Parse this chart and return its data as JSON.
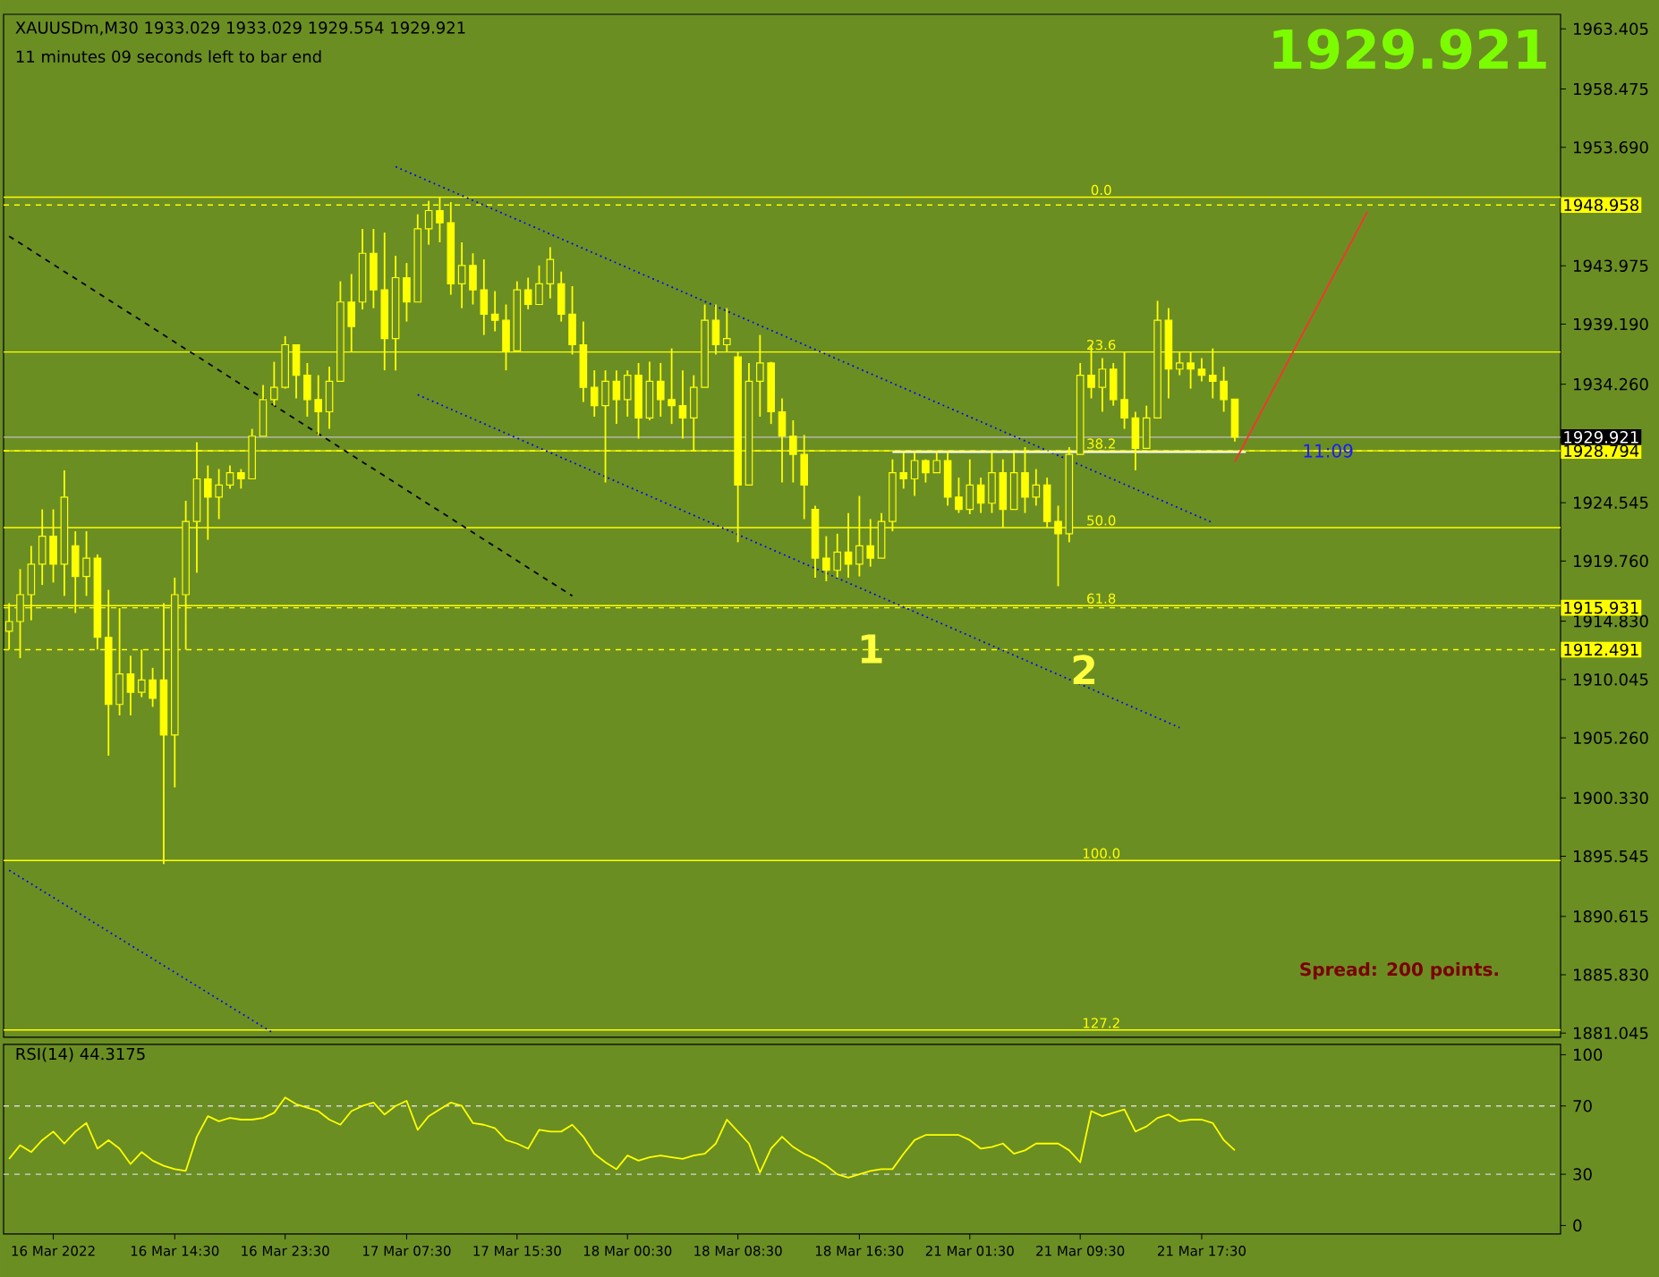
{
  "chart_data": [
    {
      "type": "candlestick",
      "title": "XAUUSDm,M30 1933.029 1933.029 1929.554 1929.921",
      "subtitle": "11 minutes 09 seconds left to bar end",
      "color": "#ffff00",
      "categories": [
        null,
        null,
        null,
        null,
        null,
        null,
        null,
        null,
        null,
        null,
        null,
        null,
        null,
        null,
        null,
        null,
        null,
        null,
        null,
        null,
        null,
        null,
        null,
        null,
        null,
        null,
        null,
        null,
        null,
        null,
        null,
        null,
        null,
        null,
        null,
        null,
        null,
        null,
        null,
        null,
        null,
        null,
        null,
        null,
        null,
        null,
        null,
        null,
        null,
        null,
        null,
        null,
        null,
        null,
        null,
        null,
        null,
        null,
        null,
        null,
        null,
        null,
        null,
        null,
        null,
        null,
        null,
        null,
        null,
        null,
        null,
        null,
        null,
        null,
        null,
        null,
        null,
        null,
        null,
        null,
        null,
        null,
        null,
        null,
        null,
        null,
        null,
        null,
        null,
        null,
        null,
        null,
        null,
        null,
        null,
        null,
        null,
        null,
        null,
        null,
        null,
        null,
        null,
        null,
        null,
        null,
        null,
        null,
        null,
        null,
        null,
        null,
        null,
        null,
        null,
        null,
        null,
        null,
        null,
        null,
        null,
        null,
        null,
        null,
        null,
        null,
        null,
        null,
        null,
        null,
        null,
        null,
        null,
        null,
        null,
        null,
        null,
        null,
        null,
        null,
        null
      ],
      "ohlc": [
        [
          1914.0,
          1916.3,
          1912.5,
          1914.8
        ],
        [
          1914.8,
          1919.1,
          1911.8,
          1917.0
        ],
        [
          1917.0,
          1921.0,
          1914.9,
          1919.5
        ],
        [
          1919.5,
          1924.0,
          1917.8,
          1921.8
        ],
        [
          1921.8,
          1924.0,
          1918.0,
          1919.5
        ],
        [
          1919.5,
          1927.2,
          1916.9,
          1925.0
        ],
        [
          1921.0,
          1922.2,
          1915.5,
          1918.5
        ],
        [
          1918.5,
          1922.2,
          1916.9,
          1920.0
        ],
        [
          1920.0,
          1920.3,
          1912.5,
          1913.5
        ],
        [
          1913.5,
          1917.4,
          1903.8,
          1908.0
        ],
        [
          1908.0,
          1915.9,
          1907.1,
          1910.5
        ],
        [
          1910.5,
          1912.0,
          1907.1,
          1909.0
        ],
        [
          1909.0,
          1912.5,
          1908.6,
          1910.0
        ],
        [
          1910.0,
          1911.0,
          1907.8,
          1908.5
        ],
        [
          1910.0,
          1916.3,
          1894.9,
          1905.5
        ],
        [
          1905.5,
          1918.4,
          1901.2,
          1917.0
        ],
        [
          1917.0,
          1924.7,
          1912.5,
          1923.0
        ],
        [
          1923.0,
          1929.5,
          1918.8,
          1926.5
        ],
        [
          1926.5,
          1927.6,
          1921.5,
          1925.0
        ],
        [
          1925.0,
          1927.3,
          1923.2,
          1926.0
        ],
        [
          1926.0,
          1927.6,
          1925.7,
          1927.0
        ],
        [
          1927.0,
          1927.3,
          1925.7,
          1926.5
        ],
        [
          1926.5,
          1930.6,
          1926.5,
          1930.0
        ],
        [
          1930.0,
          1934.2,
          1930.0,
          1933.0
        ],
        [
          1933.0,
          1936.1,
          1932.5,
          1934.0
        ],
        [
          1934.0,
          1938.2,
          1933.9,
          1937.5
        ],
        [
          1937.5,
          1937.5,
          1933.1,
          1935.0
        ],
        [
          1935.0,
          1936.0,
          1931.6,
          1933.0
        ],
        [
          1933.0,
          1935.0,
          1930.1,
          1932.0
        ],
        [
          1932.0,
          1935.7,
          1930.6,
          1934.5
        ],
        [
          1934.5,
          1942.7,
          1934.5,
          1941.0
        ],
        [
          1941.0,
          1943.3,
          1936.9,
          1939.0
        ],
        [
          1941.0,
          1947.0,
          1940.4,
          1945.0
        ],
        [
          1945.0,
          1947.0,
          1940.5,
          1942.0
        ],
        [
          1942.0,
          1946.7,
          1935.4,
          1938.0
        ],
        [
          1938.0,
          1944.8,
          1935.4,
          1943.0
        ],
        [
          1943.0,
          1944.2,
          1939.4,
          1941.0
        ],
        [
          1941.0,
          1948.2,
          1941.0,
          1947.0
        ],
        [
          1947.0,
          1949.3,
          1945.7,
          1948.5
        ],
        [
          1948.5,
          1949.6,
          1945.9,
          1947.5
        ],
        [
          1947.5,
          1949.2,
          1941.6,
          1942.5
        ],
        [
          1942.5,
          1945.9,
          1940.5,
          1944.0
        ],
        [
          1944.0,
          1945.0,
          1940.8,
          1942.0
        ],
        [
          1942.0,
          1944.5,
          1938.3,
          1940.0
        ],
        [
          1940.0,
          1941.9,
          1938.6,
          1939.5
        ],
        [
          1939.5,
          1940.8,
          1935.4,
          1937.0
        ],
        [
          1937.0,
          1942.7,
          1936.9,
          1942.0
        ],
        [
          1942.0,
          1943.0,
          1940.4,
          1940.8
        ],
        [
          1940.8,
          1944.0,
          1940.8,
          1942.5
        ],
        [
          1942.5,
          1945.5,
          1941.3,
          1944.5
        ],
        [
          1942.5,
          1943.5,
          1939.4,
          1940.0
        ],
        [
          1940.0,
          1942.3,
          1936.7,
          1937.5
        ],
        [
          1937.5,
          1939.4,
          1932.8,
          1934.0
        ],
        [
          1934.0,
          1935.4,
          1931.6,
          1932.5
        ],
        [
          1932.5,
          1935.4,
          1926.2,
          1934.5
        ],
        [
          1934.5,
          1935.4,
          1931.0,
          1933.0
        ],
        [
          1933.0,
          1935.4,
          1931.6,
          1935.0
        ],
        [
          1935.0,
          1936.0,
          1929.8,
          1931.5
        ],
        [
          1931.5,
          1936.1,
          1931.3,
          1934.5
        ],
        [
          1934.5,
          1936.0,
          1931.6,
          1933.0
        ],
        [
          1933.0,
          1937.2,
          1931.0,
          1932.5
        ],
        [
          1932.5,
          1935.4,
          1929.8,
          1931.5
        ],
        [
          1931.5,
          1935.0,
          1928.8,
          1934.0
        ],
        [
          1934.0,
          1940.8,
          1934.0,
          1939.5
        ],
        [
          1939.5,
          1940.8,
          1936.7,
          1937.5
        ],
        [
          1937.5,
          1940.5,
          1936.9,
          1938.0
        ],
        [
          1936.5,
          1936.9,
          1921.3,
          1926.0
        ],
        [
          1926.0,
          1936.0,
          1926.0,
          1934.5
        ],
        [
          1934.5,
          1938.3,
          1931.6,
          1936.0
        ],
        [
          1936.0,
          1936.1,
          1931.0,
          1932.0
        ],
        [
          1932.0,
          1933.1,
          1926.2,
          1930.0
        ],
        [
          1930.0,
          1931.3,
          1926.2,
          1928.5
        ],
        [
          1928.5,
          1930.1,
          1923.2,
          1926.0
        ],
        [
          1924.0,
          1924.3,
          1918.4,
          1920.0
        ],
        [
          1920.0,
          1921.8,
          1918.1,
          1919.0
        ],
        [
          1919.0,
          1922.0,
          1918.4,
          1920.5
        ],
        [
          1920.5,
          1923.7,
          1918.4,
          1919.5
        ],
        [
          1919.5,
          1925.1,
          1918.5,
          1921.0
        ],
        [
          1921.0,
          1923.2,
          1919.3,
          1920.0
        ],
        [
          1920.0,
          1923.7,
          1920.0,
          1923.0
        ],
        [
          1923.0,
          1928.1,
          1922.2,
          1927.0
        ],
        [
          1927.0,
          1928.7,
          1925.7,
          1926.5
        ],
        [
          1926.5,
          1928.7,
          1925.1,
          1928.0
        ],
        [
          1928.0,
          1928.1,
          1926.2,
          1927.0
        ],
        [
          1927.0,
          1928.7,
          1927.0,
          1928.0
        ],
        [
          1928.0,
          1928.7,
          1924.3,
          1925.0
        ],
        [
          1925.0,
          1926.6,
          1923.7,
          1924.0
        ],
        [
          1924.0,
          1928.1,
          1923.6,
          1926.0
        ],
        [
          1926.0,
          1926.6,
          1923.7,
          1924.5
        ],
        [
          1924.5,
          1928.7,
          1923.7,
          1927.0
        ],
        [
          1927.0,
          1928.1,
          1922.5,
          1924.0
        ],
        [
          1924.0,
          1928.7,
          1924.0,
          1927.0
        ],
        [
          1927.0,
          1929.1,
          1923.7,
          1925.0
        ],
        [
          1925.0,
          1927.3,
          1924.3,
          1926.0
        ],
        [
          1926.0,
          1926.6,
          1922.5,
          1923.0
        ],
        [
          1923.0,
          1924.3,
          1917.7,
          1922.0
        ],
        [
          1922.0,
          1929.1,
          1921.3,
          1928.5
        ],
        [
          1928.5,
          1936.0,
          1928.5,
          1935.0
        ],
        [
          1935.0,
          1937.5,
          1933.1,
          1934.0
        ],
        [
          1934.0,
          1936.4,
          1932.0,
          1935.5
        ],
        [
          1935.5,
          1936.0,
          1932.5,
          1933.0
        ],
        [
          1933.0,
          1936.9,
          1930.6,
          1931.5
        ],
        [
          1931.5,
          1932.0,
          1927.2,
          1929.0
        ],
        [
          1929.0,
          1932.5,
          1929.0,
          1931.5
        ],
        [
          1931.5,
          1941.1,
          1931.5,
          1939.5
        ],
        [
          1939.5,
          1940.5,
          1933.1,
          1935.5
        ],
        [
          1935.5,
          1936.9,
          1935.0,
          1936.0
        ],
        [
          1936.0,
          1936.9,
          1933.9,
          1935.5
        ],
        [
          1935.5,
          1936.4,
          1934.5,
          1935.0
        ],
        [
          1935.0,
          1937.2,
          1933.1,
          1934.5
        ],
        [
          1934.5,
          1935.7,
          1932.0,
          1933.0
        ],
        [
          1933.029,
          1933.029,
          1929.554,
          1929.921
        ],
        null,
        null,
        null,
        null,
        null,
        null,
        null,
        null,
        null,
        null,
        null,
        null,
        null,
        null,
        null,
        null,
        null,
        null,
        null,
        null,
        null,
        null,
        null,
        null,
        null,
        null,
        null,
        null,
        null
      ],
      "series": [
        {
          "type": "line",
          "color": "#0000ff",
          "line_style": "dotted",
          "values": [
            null,
            null,
            null,
            null,
            null,
            null,
            null,
            null,
            null,
            null,
            null,
            null,
            null,
            null,
            null,
            null,
            null,
            null,
            null,
            null,
            null,
            null,
            null,
            null,
            null,
            null,
            null,
            null,
            null,
            null,
            null,
            null,
            null,
            null,
            null,
            1952.1,
            null,
            null,
            null,
            null,
            null,
            null,
            null,
            null,
            null,
            null,
            null,
            null,
            null,
            null,
            null,
            null,
            null,
            null,
            null,
            null,
            null,
            null,
            null,
            null,
            null,
            null,
            null,
            null,
            null,
            null,
            null,
            null,
            null,
            null,
            null,
            null,
            null,
            null,
            null,
            null,
            null,
            null,
            null,
            null,
            null,
            null,
            null,
            null,
            null,
            null,
            null,
            null,
            null,
            null,
            null,
            null,
            null,
            null,
            null,
            null,
            null,
            null,
            null,
            null,
            null,
            null,
            null,
            null,
            null,
            null,
            null,
            null,
            null,
            1922.9,
            null,
            null,
            null,
            null,
            null,
            null,
            null,
            null,
            null,
            null,
            null,
            null,
            null,
            null,
            null,
            null,
            null,
            null,
            null,
            null,
            null,
            null,
            null,
            null,
            null,
            null,
            null,
            null,
            null,
            null,
            null
          ]
        },
        {
          "type": "line",
          "color": "#000000",
          "line_style": "dashed",
          "values": [
            1946.4,
            null,
            null,
            null,
            null,
            null,
            null,
            null,
            null,
            null,
            null,
            null,
            null,
            null,
            null,
            null,
            null,
            null,
            null,
            null,
            null,
            null,
            null,
            null,
            null,
            null,
            null,
            null,
            null,
            null,
            null,
            null,
            null,
            null,
            null,
            null,
            null,
            null,
            null,
            null,
            null,
            null,
            null,
            null,
            null,
            null,
            null,
            null,
            null,
            null,
            null,
            1916.9,
            null,
            null,
            null,
            null,
            null,
            null,
            null,
            null,
            null,
            null,
            null,
            null,
            null,
            null,
            null,
            null,
            null,
            null,
            null,
            null,
            null,
            null,
            null,
            null,
            null,
            null,
            null,
            null,
            null,
            null,
            null,
            null,
            null,
            null,
            null,
            null,
            null,
            null,
            null,
            null,
            null,
            null,
            null,
            null,
            null,
            null,
            null,
            null,
            null,
            null,
            null,
            null,
            null,
            null,
            null,
            null,
            null,
            null,
            null,
            null,
            null,
            null,
            null,
            null,
            null,
            null,
            null,
            null,
            null,
            null,
            null,
            null,
            null,
            null,
            null,
            null,
            null,
            null,
            null,
            null,
            null,
            null,
            null,
            null,
            null,
            null,
            null,
            null,
            null
          ]
        },
        {
          "type": "line",
          "color": "#0000ff",
          "line_style": "dotted",
          "values": [
            null,
            null,
            null,
            null,
            null,
            null,
            null,
            null,
            null,
            null,
            null,
            null,
            null,
            null,
            null,
            null,
            null,
            null,
            null,
            null,
            null,
            null,
            null,
            null,
            null,
            null,
            null,
            null,
            null,
            null,
            null,
            null,
            null,
            null,
            null,
            null,
            null,
            1933.4,
            null,
            null,
            null,
            null,
            null,
            null,
            null,
            null,
            null,
            null,
            null,
            null,
            null,
            null,
            null,
            null,
            null,
            null,
            null,
            null,
            null,
            null,
            null,
            null,
            null,
            null,
            null,
            null,
            null,
            null,
            null,
            null,
            null,
            null,
            null,
            null,
            null,
            null,
            null,
            null,
            null,
            null,
            null,
            null,
            null,
            null,
            null,
            null,
            null,
            null,
            null,
            null,
            null,
            null,
            null,
            null,
            null,
            null,
            null,
            null,
            null,
            null,
            null,
            null,
            null,
            null,
            null,
            null,
            1906.1,
            null,
            null,
            null,
            null,
            null,
            null,
            null,
            null,
            null,
            null,
            null,
            null,
            null,
            null,
            null,
            null,
            null,
            null,
            null,
            null,
            null,
            null,
            null,
            null,
            null,
            null,
            null,
            null,
            null,
            null,
            null,
            null,
            null,
            null
          ]
        },
        {
          "type": "line",
          "color": "#0000ff",
          "line_style": "dotted",
          "values": [
            1894.4,
            null,
            null,
            null,
            null,
            null,
            null,
            null,
            null,
            null,
            null,
            null,
            null,
            null,
            null,
            null,
            null,
            null,
            null,
            null,
            null,
            null,
            null,
            null,
            1881.0,
            null,
            null,
            null,
            null,
            null,
            null,
            null,
            null,
            null,
            null,
            null,
            null,
            null,
            null,
            null,
            null,
            null,
            null,
            null,
            null,
            null,
            null,
            null,
            null,
            null,
            null,
            null,
            null,
            null,
            null,
            null,
            null,
            null,
            null,
            null,
            null,
            null,
            null,
            null,
            null,
            null,
            null,
            null,
            null,
            null,
            null,
            null,
            null,
            null,
            null,
            null,
            null,
            null,
            null,
            null,
            null,
            null,
            null,
            null,
            null,
            null,
            null,
            null,
            null,
            null,
            null,
            null,
            null,
            null,
            null,
            null,
            null,
            null,
            null,
            null,
            null,
            null,
            null,
            null,
            null,
            null,
            null,
            null,
            null,
            null,
            null,
            null,
            null,
            null,
            null,
            null,
            null,
            null,
            null,
            null,
            null,
            null,
            null,
            null,
            null,
            null,
            null,
            null,
            null,
            null,
            null,
            null,
            null,
            null,
            null,
            null,
            null,
            null,
            null,
            null,
            null
          ]
        },
        {
          "type": "line",
          "color": "#ffffff",
          "line_style": "solid",
          "values": [
            null,
            null,
            null,
            null,
            null,
            null,
            null,
            null,
            null,
            null,
            null,
            null,
            null,
            null,
            null,
            null,
            null,
            null,
            null,
            null,
            null,
            null,
            null,
            null,
            null,
            null,
            null,
            null,
            null,
            null,
            null,
            null,
            null,
            null,
            null,
            null,
            null,
            null,
            null,
            null,
            null,
            null,
            null,
            null,
            null,
            null,
            null,
            null,
            null,
            null,
            null,
            null,
            null,
            null,
            null,
            null,
            null,
            null,
            null,
            null,
            null,
            null,
            null,
            null,
            null,
            null,
            null,
            null,
            null,
            null,
            null,
            null,
            null,
            null,
            null,
            null,
            null,
            null,
            null,
            null,
            1928.7,
            null,
            null,
            null,
            null,
            null,
            null,
            null,
            null,
            null,
            null,
            null,
            null,
            null,
            null,
            null,
            null,
            null,
            null,
            null,
            null,
            null,
            null,
            null,
            null,
            null,
            null,
            null,
            null,
            null,
            null,
            null,
            1928.7,
            null,
            null,
            null,
            null,
            null,
            null,
            null,
            null,
            null,
            null,
            null,
            null,
            null,
            null,
            null,
            null,
            null,
            null,
            null,
            null,
            null,
            null,
            null,
            null,
            null,
            null,
            null,
            null
          ]
        },
        {
          "type": "line",
          "color": "#ff3030",
          "line_style": "solid",
          "values": [
            null,
            null,
            null,
            null,
            null,
            null,
            null,
            null,
            null,
            null,
            null,
            null,
            null,
            null,
            null,
            null,
            null,
            null,
            null,
            null,
            null,
            null,
            null,
            null,
            null,
            null,
            null,
            null,
            null,
            null,
            null,
            null,
            null,
            null,
            null,
            null,
            null,
            null,
            null,
            null,
            null,
            null,
            null,
            null,
            null,
            null,
            null,
            null,
            null,
            null,
            null,
            null,
            null,
            null,
            null,
            null,
            null,
            null,
            null,
            null,
            null,
            null,
            null,
            null,
            null,
            null,
            null,
            null,
            null,
            null,
            null,
            null,
            null,
            null,
            null,
            null,
            null,
            null,
            null,
            null,
            null,
            null,
            null,
            null,
            null,
            null,
            null,
            null,
            null,
            null,
            null,
            null,
            null,
            null,
            null,
            null,
            null,
            null,
            null,
            null,
            null,
            null,
            null,
            null,
            null,
            null,
            null,
            null,
            null,
            null,
            null,
            1927.9,
            null,
            null,
            null,
            null,
            null,
            null,
            null,
            null,
            null,
            null,
            null,
            1948.4,
            null,
            null,
            null,
            null,
            null,
            null,
            null,
            null,
            null,
            null,
            null,
            null,
            null,
            null,
            null,
            null,
            null
          ]
        }
      ],
      "ylim": [
        1880.7,
        1964.6
      ],
      "yticks": [
        1963.405,
        1958.475,
        {
          "value": 1953.69,
          "label": "1953.690"
        },
        1943.975,
        {
          "value": 1939.19,
          "label": "1939.190"
        },
        {
          "value": 1934.26,
          "label": "1934.260"
        },
        1924.545,
        {
          "value": 1919.76,
          "label": "1919.760"
        },
        {
          "value": 1914.83,
          "label": "1914.830"
        },
        1910.045,
        {
          "value": 1905.26,
          "label": "1905.260"
        },
        {
          "value": 1900.33,
          "label": "1900.330"
        },
        1895.545,
        1890.615,
        {
          "value": 1885.83,
          "label": "1885.830"
        },
        1881.045
      ],
      "tick_labels": "y",
      "ref_lines": [
        {
          "axis": "y",
          "value": 1948.958,
          "label": "1948.958",
          "color": "#ffff00",
          "line_style": "dashed"
        },
        {
          "axis": "y",
          "value": 1928.794,
          "label": "1928.794",
          "color": "#ffff00",
          "line_style": "dashed"
        },
        {
          "axis": "y",
          "value": 1915.931,
          "label": "1915.931",
          "color": "#ffff00",
          "line_style": "dashed"
        },
        {
          "axis": "y",
          "value": 1912.491,
          "label": "1912.491",
          "color": "#ffff00",
          "line_style": "dashed"
        },
        {
          "axis": "y",
          "value": 1929.921,
          "label": "1929.921",
          "color": "#c0c0c0",
          "line_style": "solid"
        },
        {
          "axis": "y",
          "value": 1949.6,
          "color": "#ffff00"
        },
        {
          "axis": "y",
          "value": 1936.9,
          "color": "#ffff00"
        },
        {
          "axis": "y",
          "value": 1928.8,
          "color": "#ffff00"
        },
        {
          "axis": "y",
          "value": 1922.5,
          "color": "#ffff00"
        },
        {
          "axis": "y",
          "value": 1916.1,
          "color": "#ffff00"
        },
        {
          "axis": "y",
          "value": 1895.2,
          "color": "#ffff00"
        },
        {
          "axis": "y",
          "value": 1881.3,
          "color": "#ffff00"
        }
      ],
      "annotations": [
        "1929.921",
        "Spread: 200 points.",
        "1",
        "2",
        {
          "text": "11:09",
          "y": 1928.8
        },
        {
          "text": "0.0",
          "y": 1949.6
        },
        {
          "text": "23.6",
          "y": 1936.9
        },
        {
          "text": "38.2",
          "y": 1928.8
        },
        {
          "text": "50.0",
          "y": 1922.5
        },
        {
          "text": "61.8",
          "y": 1916.1
        },
        {
          "text": "100.0",
          "y": 1895.2
        },
        {
          "text": "127.2",
          "y": 1881.3
        }
      ]
    },
    {
      "type": "line",
      "title": "RSI(14) 44.3175",
      "color": "#ffff00",
      "categories": [
        null,
        null,
        null,
        null,
        "16 Mar 2022",
        null,
        null,
        null,
        null,
        null,
        null,
        null,
        null,
        null,
        null,
        "16 Mar 14:30",
        null,
        null,
        null,
        null,
        null,
        null,
        null,
        null,
        null,
        "16 Mar 23:30",
        null,
        null,
        null,
        null,
        null,
        null,
        null,
        null,
        null,
        null,
        "17 Mar 07:30",
        null,
        null,
        null,
        null,
        null,
        null,
        null,
        null,
        null,
        "17 Mar 15:30",
        null,
        null,
        null,
        null,
        null,
        null,
        null,
        null,
        null,
        "18 Mar 00:30",
        null,
        null,
        null,
        null,
        null,
        null,
        null,
        null,
        null,
        "18 Mar 08:30",
        null,
        null,
        null,
        null,
        null,
        null,
        null,
        null,
        null,
        null,
        "18 Mar 16:30",
        null,
        null,
        null,
        null,
        null,
        null,
        null,
        null,
        null,
        "21 Mar 01:30",
        null,
        null,
        null,
        null,
        null,
        null,
        null,
        null,
        null,
        "21 Mar 09:30",
        null,
        null,
        null,
        null,
        null,
        null,
        null,
        null,
        null,
        null,
        "21 Mar 17:30",
        null,
        null,
        null,
        null,
        null,
        null,
        null,
        null,
        null,
        null,
        null,
        null,
        null,
        null,
        null,
        null,
        null,
        null,
        null,
        null,
        null,
        null,
        null,
        null,
        null,
        null,
        null,
        null,
        null,
        null,
        null,
        null
      ],
      "values": [
        39,
        47,
        43,
        50,
        55,
        48,
        55,
        60,
        45,
        50,
        45,
        36,
        43,
        38,
        35,
        33,
        32,
        52,
        64,
        61,
        63,
        62,
        62,
        63,
        66,
        75,
        71,
        69,
        67,
        62,
        59,
        67,
        70,
        72,
        65,
        70,
        73,
        56,
        64,
        68,
        72,
        70,
        60,
        59,
        57,
        50,
        48,
        45,
        56,
        55,
        55,
        59,
        52,
        42,
        37,
        33,
        41,
        38,
        40,
        41,
        40,
        39,
        41,
        42,
        48,
        62,
        55,
        48,
        31,
        45,
        52,
        46,
        42,
        39,
        35,
        30,
        28,
        30,
        32,
        33,
        33,
        42,
        50,
        53,
        53,
        53,
        53,
        50,
        45,
        46,
        48,
        42,
        44,
        48,
        48,
        48,
        44,
        37,
        67,
        64,
        66,
        68,
        55,
        58,
        63,
        65,
        61,
        62,
        62,
        60,
        50,
        44,
        null,
        null,
        null,
        null,
        null,
        null,
        null,
        null,
        null,
        null,
        null,
        null,
        null,
        null,
        null,
        null,
        null,
        null,
        null,
        null,
        null,
        null,
        null,
        null,
        null,
        null,
        null,
        null,
        null
      ],
      "ylim": [
        -5,
        106
      ],
      "yticks": [
        0,
        30,
        70,
        100
      ],
      "ref_lines": [
        {
          "axis": "y",
          "value": 30,
          "color": "#d8d8d8",
          "line_style": "dashed"
        },
        {
          "axis": "y",
          "value": 70,
          "color": "#d8d8d8",
          "line_style": "dashed"
        }
      ]
    }
  ]
}
